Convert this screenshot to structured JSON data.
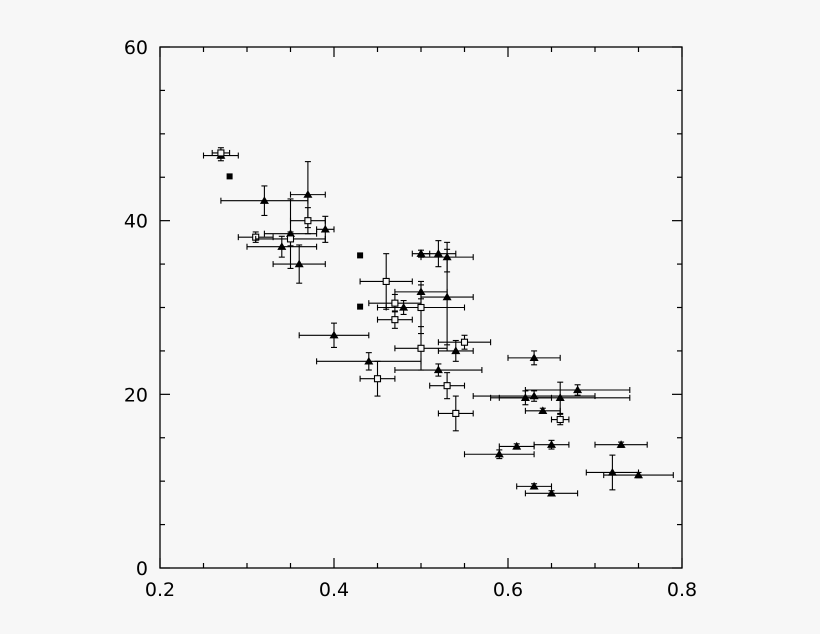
{
  "chart_data": {
    "type": "scatter",
    "title": "",
    "xlabel": "",
    "ylabel": "",
    "xlim": [
      0.2,
      0.8
    ],
    "ylim": [
      0,
      60
    ],
    "grid": false,
    "x_ticks": [
      0.2,
      0.4,
      0.6,
      0.8
    ],
    "x_tick_labels": [
      "0.2",
      "0.4",
      "0.6",
      "0.8"
    ],
    "y_ticks": [
      0,
      20,
      40,
      60
    ],
    "y_tick_labels": [
      "0",
      "20",
      "40",
      "60"
    ],
    "series": [
      {
        "marker": "triangle",
        "points": [
          {
            "x": 0.27,
            "y": 47.5,
            "xerr": 0.02,
            "yerr": 0.6
          },
          {
            "x": 0.32,
            "y": 42.3,
            "xerr": 0.05,
            "yerr": 1.7
          },
          {
            "x": 0.34,
            "y": 37.0,
            "xerr": 0.04,
            "yerr": 1.2
          },
          {
            "x": 0.35,
            "y": 38.5,
            "xerr": 0.03,
            "yerr": 4.0
          },
          {
            "x": 0.36,
            "y": 35.0,
            "xerr": 0.03,
            "yerr": 2.2
          },
          {
            "x": 0.37,
            "y": 43.0,
            "xerr": 0.02,
            "yerr": 3.8
          },
          {
            "x": 0.39,
            "y": 39.0,
            "xerr": 0.01,
            "yerr": 1.5
          },
          {
            "x": 0.4,
            "y": 26.8,
            "xerr": 0.04,
            "yerr": 1.4
          },
          {
            "x": 0.44,
            "y": 23.8,
            "xerr": 0.06,
            "yerr": 1.0
          },
          {
            "x": 0.48,
            "y": 30.0,
            "xerr": 0.02,
            "yerr": 0.8
          },
          {
            "x": 0.5,
            "y": 36.2,
            "xerr": 0.01,
            "yerr": 0.4
          },
          {
            "x": 0.5,
            "y": 31.8,
            "xerr": 0.03,
            "yerr": 0.8
          },
          {
            "x": 0.52,
            "y": 36.2,
            "xerr": 0.02,
            "yerr": 1.5
          },
          {
            "x": 0.52,
            "y": 22.8,
            "xerr": 0.05,
            "yerr": 0.7
          },
          {
            "x": 0.53,
            "y": 35.8,
            "xerr": 0.03,
            "yerr": 1.7
          },
          {
            "x": 0.53,
            "y": 31.2,
            "xerr": 0.03,
            "yerr": 5.5
          },
          {
            "x": 0.54,
            "y": 25.0,
            "xerr": 0.02,
            "yerr": 1.2
          },
          {
            "x": 0.59,
            "y": 13.1,
            "xerr": 0.04,
            "yerr": 0.5
          },
          {
            "x": 0.61,
            "y": 14.0,
            "xerr": 0.02,
            "yerr": 0.3
          },
          {
            "x": 0.62,
            "y": 19.6,
            "xerr": 0.03,
            "yerr": 0.8
          },
          {
            "x": 0.63,
            "y": 24.2,
            "xerr": 0.03,
            "yerr": 0.8
          },
          {
            "x": 0.63,
            "y": 19.8,
            "xerr": 0.07,
            "yerr": 0.6
          },
          {
            "x": 0.63,
            "y": 9.4,
            "xerr": 0.02,
            "yerr": 0.3
          },
          {
            "x": 0.64,
            "y": 18.1,
            "xerr": 0.02,
            "yerr": 0.3
          },
          {
            "x": 0.65,
            "y": 14.2,
            "xerr": 0.02,
            "yerr": 0.5
          },
          {
            "x": 0.65,
            "y": 8.6,
            "xerr": 0.03,
            "yerr": 0.3
          },
          {
            "x": 0.66,
            "y": 19.6,
            "xerr": 0.08,
            "yerr": 1.8
          },
          {
            "x": 0.68,
            "y": 20.5,
            "xerr": 0.06,
            "yerr": 0.6
          },
          {
            "x": 0.72,
            "y": 11.0,
            "xerr": 0.03,
            "yerr": 2.0
          },
          {
            "x": 0.73,
            "y": 14.2,
            "xerr": 0.03,
            "yerr": 0.3
          },
          {
            "x": 0.75,
            "y": 10.7,
            "xerr": 0.04,
            "yerr": 0.3
          }
        ]
      },
      {
        "marker": "open-square",
        "points": [
          {
            "x": 0.27,
            "y": 47.8,
            "xerr": 0.01,
            "yerr": 0.6
          },
          {
            "x": 0.31,
            "y": 38.1,
            "xerr": 0.02,
            "yerr": 0.6
          },
          {
            "x": 0.35,
            "y": 37.9,
            "xerr": 0.04,
            "yerr": 0.8
          },
          {
            "x": 0.37,
            "y": 40.0,
            "xerr": 0.02,
            "yerr": 1.5
          },
          {
            "x": 0.45,
            "y": 21.8,
            "xerr": 0.02,
            "yerr": 2.0
          },
          {
            "x": 0.46,
            "y": 33.0,
            "xerr": 0.03,
            "yerr": 3.2
          },
          {
            "x": 0.47,
            "y": 30.5,
            "xerr": 0.03,
            "yerr": 1.0
          },
          {
            "x": 0.47,
            "y": 28.6,
            "xerr": 0.02,
            "yerr": 1.0
          },
          {
            "x": 0.5,
            "y": 30.0,
            "xerr": 0.05,
            "yerr": 3.0
          },
          {
            "x": 0.5,
            "y": 25.3,
            "xerr": 0.03,
            "yerr": 2.5
          },
          {
            "x": 0.53,
            "y": 21.0,
            "xerr": 0.02,
            "yerr": 1.5
          },
          {
            "x": 0.54,
            "y": 17.8,
            "xerr": 0.02,
            "yerr": 2.0
          },
          {
            "x": 0.55,
            "y": 26.0,
            "xerr": 0.03,
            "yerr": 0.8
          },
          {
            "x": 0.66,
            "y": 17.1,
            "xerr": 0.01,
            "yerr": 0.6
          }
        ]
      },
      {
        "marker": "filled-square",
        "points": [
          {
            "x": 0.28,
            "y": 45.1
          },
          {
            "x": 0.43,
            "y": 36.0
          },
          {
            "x": 0.43,
            "y": 30.1
          }
        ]
      }
    ]
  }
}
